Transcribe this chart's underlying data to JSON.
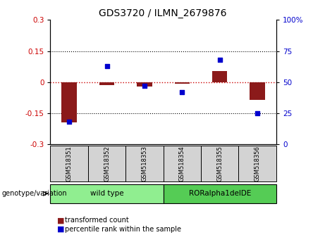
{
  "title": "GDS3720 / ILMN_2679876",
  "samples": [
    "GSM518351",
    "GSM518352",
    "GSM518353",
    "GSM518354",
    "GSM518355",
    "GSM518356"
  ],
  "transformed_count": [
    -0.195,
    -0.015,
    -0.02,
    -0.008,
    0.055,
    -0.085
  ],
  "percentile_rank": [
    18,
    63,
    47,
    42,
    68,
    25
  ],
  "ylim_left": [
    -0.3,
    0.3
  ],
  "ylim_right": [
    0,
    100
  ],
  "bar_color": "#8B1A1A",
  "point_color": "#0000CD",
  "zero_line_color": "#CC0000",
  "grid_color": "#000000",
  "groups": [
    {
      "label": "wild type",
      "indices": [
        0,
        1,
        2
      ],
      "color": "#90EE90"
    },
    {
      "label": "RORalpha1delDE",
      "indices": [
        3,
        4,
        5
      ],
      "color": "#55CC55"
    }
  ],
  "genotype_label": "genotype/variation",
  "legend_items": [
    {
      "label": "transformed count",
      "color": "#8B1A1A"
    },
    {
      "label": "percentile rank within the sample",
      "color": "#0000CD"
    }
  ],
  "background_color": "#FFFFFF",
  "plot_bg": "#FFFFFF",
  "tick_color_left": "#CC0000",
  "tick_color_right": "#0000CD",
  "yticks_left": [
    -0.3,
    -0.15,
    0.0,
    0.15,
    0.3
  ],
  "ytick_labels_left": [
    "-0.3",
    "-0.15",
    "0",
    "0.15",
    "0.3"
  ],
  "yticks_right": [
    0,
    25,
    50,
    75,
    100
  ],
  "ytick_labels_right": [
    "0",
    "25",
    "50",
    "75",
    "100%"
  ],
  "sample_box_color": "#D3D3D3",
  "bar_width": 0.4
}
